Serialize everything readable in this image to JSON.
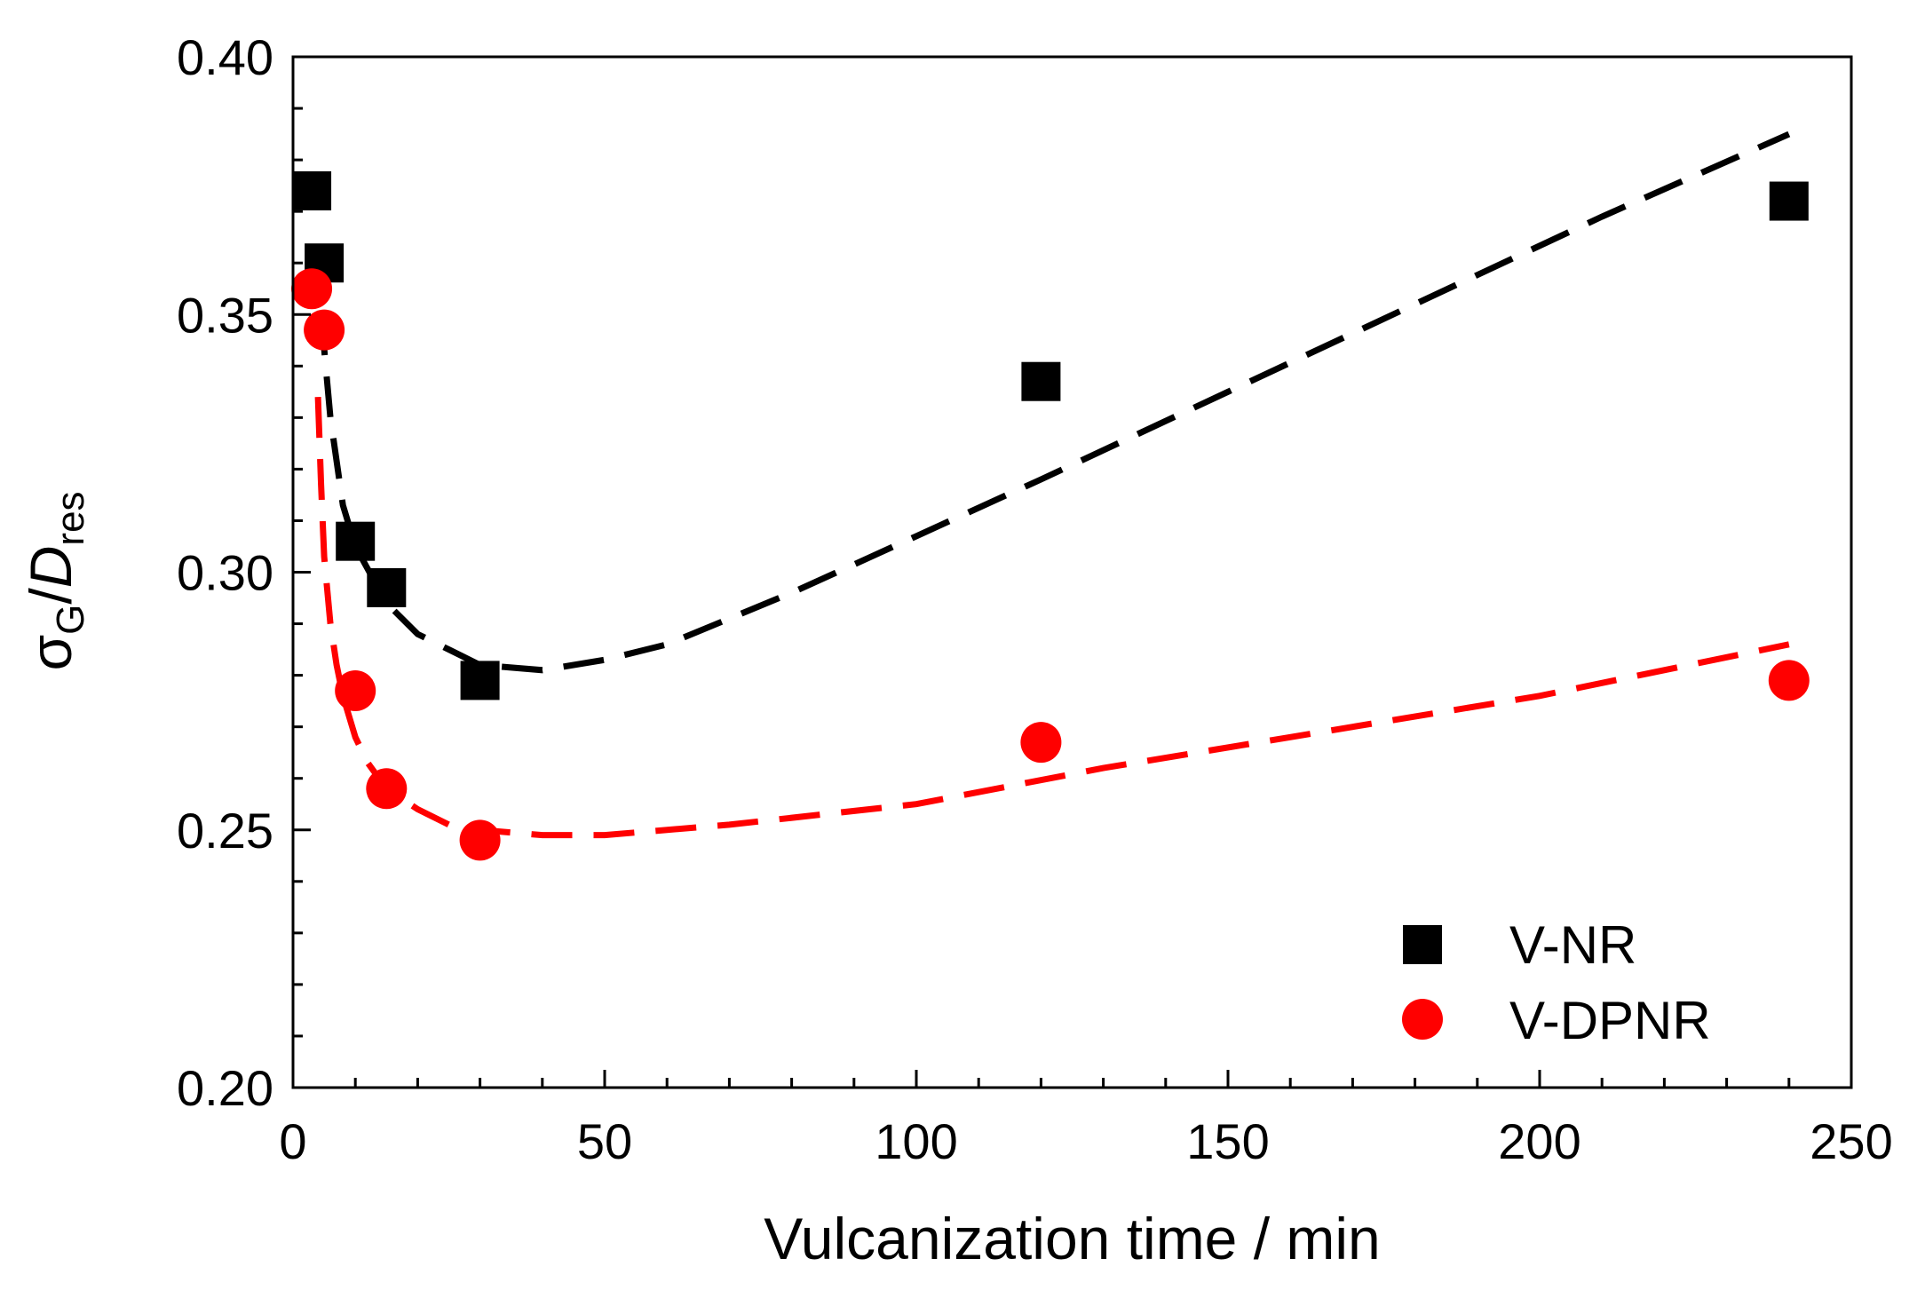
{
  "chart_data": {
    "type": "scatter",
    "xlabel": "Vulcanization time / min",
    "ylabel": {
      "base": "σ",
      "base_sub": "G",
      "sep": "/",
      "italic": "D",
      "italic_sub": "res"
    },
    "xlim": [
      0,
      250
    ],
    "ylim": [
      0.2,
      0.4
    ],
    "x_ticks": [
      0,
      50,
      100,
      150,
      200,
      250
    ],
    "x_tick_labels": [
      "0",
      "50",
      "100",
      "150",
      "200",
      "250"
    ],
    "y_ticks": [
      0.2,
      0.25,
      0.3,
      0.35,
      0.4
    ],
    "y_tick_labels": [
      "0.20",
      "0.25",
      "0.30",
      "0.35",
      "0.40"
    ],
    "x_minor_step": 10,
    "y_minor_step": 0.01,
    "grid": false,
    "legend_position": "bottom-right",
    "series": [
      {
        "name": "V-NR",
        "marker": "square",
        "color": "#000000",
        "x": [
          3,
          5,
          10,
          15,
          30,
          120,
          240
        ],
        "y": [
          0.374,
          0.36,
          0.306,
          0.297,
          0.279,
          0.337,
          0.372
        ],
        "fit": {
          "x": [
            4.5,
            6,
            8,
            10,
            15,
            20,
            30,
            40,
            50,
            60,
            80,
            100,
            120,
            150,
            180,
            210,
            240
          ],
          "y": [
            0.35,
            0.33,
            0.313,
            0.305,
            0.294,
            0.288,
            0.282,
            0.281,
            0.283,
            0.286,
            0.296,
            0.307,
            0.318,
            0.335,
            0.352,
            0.369,
            0.385
          ]
        }
      },
      {
        "name": "V-DPNR",
        "marker": "circle",
        "color": "#ff0000",
        "x": [
          3,
          5,
          10,
          15,
          30,
          120,
          240
        ],
        "y": [
          0.355,
          0.347,
          0.277,
          0.258,
          0.248,
          0.267,
          0.279
        ],
        "fit": {
          "x": [
            4,
            4.5,
            5,
            6,
            7,
            8,
            10,
            12,
            15,
            20,
            25,
            30,
            40,
            50,
            70,
            100,
            130,
            160,
            200,
            240
          ],
          "y": [
            0.334,
            0.317,
            0.303,
            0.29,
            0.282,
            0.276,
            0.268,
            0.263,
            0.258,
            0.254,
            0.251,
            0.25,
            0.249,
            0.249,
            0.251,
            0.255,
            0.262,
            0.268,
            0.276,
            0.286
          ]
        }
      }
    ]
  }
}
